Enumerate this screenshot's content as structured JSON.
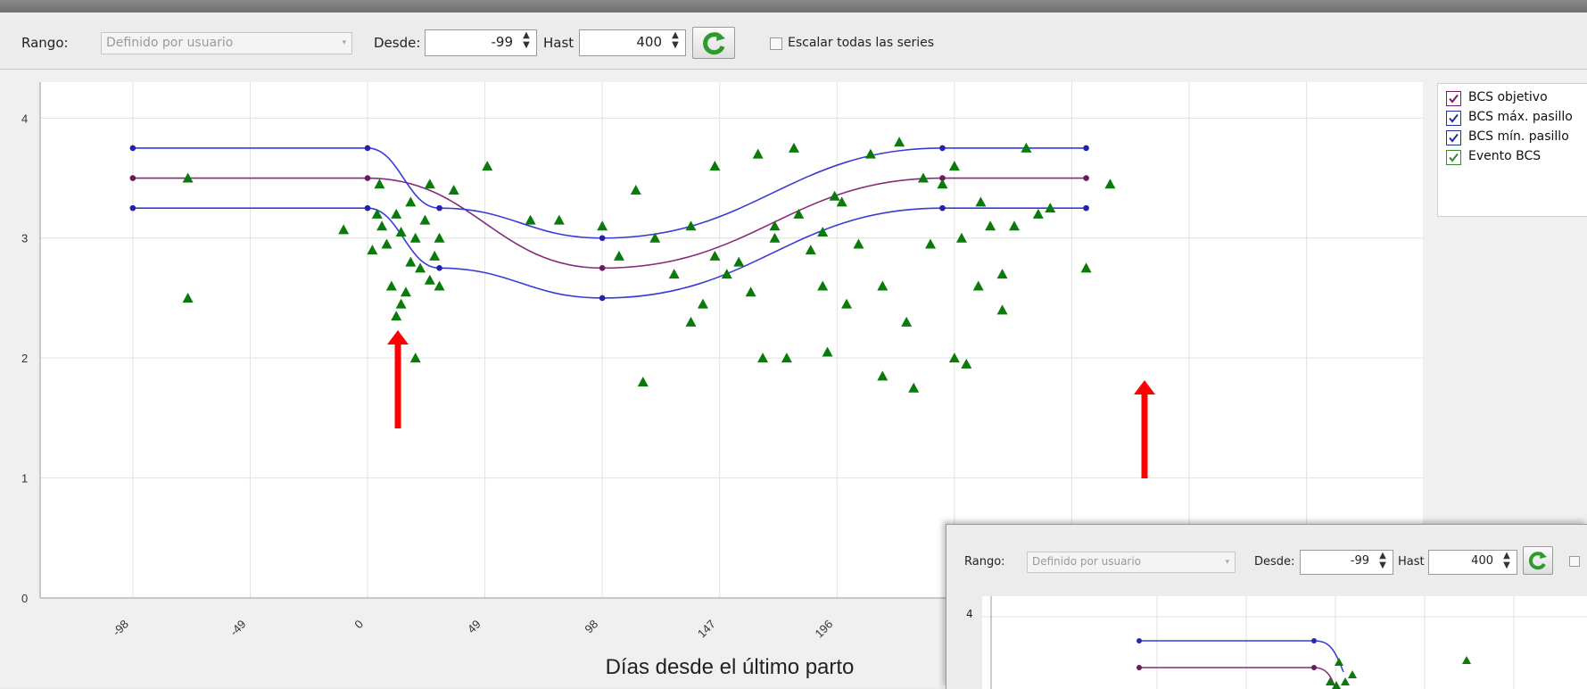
{
  "window": {
    "title": ""
  },
  "toolbar": {
    "rango_label": "Rango:",
    "rango_value": "Definido por usuario",
    "desde_label": "Desde:",
    "desde_value": "-99",
    "hasta_label": "Hast",
    "hasta_value": "400",
    "scale_label": "Escalar todas las series",
    "scale_checked": false
  },
  "legend": {
    "items": [
      {
        "label": "BCS objetivo",
        "color": "#7a1a6a",
        "checked": true
      },
      {
        "label": "BCS máx. pasillo",
        "color": "#1f2fa8",
        "checked": true
      },
      {
        "label": "BCS mín. pasillo",
        "color": "#1f2fa8",
        "checked": true
      },
      {
        "label": "Evento BCS",
        "color": "#2e8b2e",
        "checked": true
      }
    ]
  },
  "chart_data": {
    "type": "scatter",
    "xlabel": "Días desde el último parto",
    "ylabel": "",
    "x_ticks": [
      "-98",
      "-49",
      "0",
      "49",
      "98",
      "147",
      "196"
    ],
    "y_ticks": [
      "0",
      "1",
      "2",
      "3",
      "4"
    ],
    "xlim": [
      -99,
      400
    ],
    "ylim": [
      0,
      4.3
    ],
    "grid": true,
    "legend_position": "right",
    "series": [
      {
        "name": "BCS objetivo",
        "type": "line",
        "color": "#8a2a7a",
        "x": [
          -98,
          0,
          98,
          240,
          300
        ],
        "y": [
          3.5,
          3.5,
          2.75,
          3.5,
          3.5
        ]
      },
      {
        "name": "BCS máx. pasillo",
        "type": "line",
        "color": "#3a3ad8",
        "x": [
          -98,
          0,
          30,
          98,
          240,
          300
        ],
        "y": [
          3.75,
          3.75,
          3.25,
          3.0,
          3.75,
          3.75
        ]
      },
      {
        "name": "BCS mín. pasillo",
        "type": "line",
        "color": "#3a3ad8",
        "x": [
          -98,
          0,
          30,
          98,
          240,
          300
        ],
        "y": [
          3.25,
          3.25,
          2.75,
          2.5,
          3.25,
          3.25
        ]
      },
      {
        "name": "Evento BCS",
        "type": "scatter",
        "color": "#0a7a0a",
        "x": [
          -75,
          -75,
          -10,
          5,
          12,
          20,
          28,
          36,
          50,
          68,
          80,
          98,
          105,
          112,
          120,
          128,
          135,
          145,
          155,
          163,
          170,
          178,
          190,
          198,
          210,
          222,
          232,
          240,
          248,
          256,
          260,
          265,
          275,
          285,
          115,
          135,
          165,
          192,
          215,
          228,
          245,
          175,
          145,
          190,
          200,
          250,
          2,
          6,
          10,
          14,
          18,
          22,
          26,
          30,
          8,
          16,
          24,
          12,
          20,
          4,
          30,
          18,
          14,
          26,
          280,
          300,
          310,
          160,
          180,
          205,
          225,
          255,
          235,
          140,
          150,
          170,
          185,
          195,
          215,
          245,
          265,
          270
        ],
        "y": [
          3.5,
          2.5,
          3.07,
          3.45,
          3.2,
          3.0,
          2.85,
          3.4,
          3.6,
          3.15,
          3.15,
          3.1,
          2.85,
          3.4,
          3.0,
          2.7,
          3.1,
          3.6,
          2.8,
          3.7,
          3.0,
          3.75,
          3.05,
          3.3,
          3.7,
          3.8,
          3.5,
          3.45,
          3.0,
          3.3,
          3.1,
          2.7,
          3.75,
          3.25,
          1.8,
          2.3,
          2.0,
          2.05,
          1.85,
          1.75,
          2.0,
          2.0,
          2.85,
          2.6,
          2.45,
          1.95,
          2.9,
          3.1,
          2.6,
          2.45,
          3.3,
          2.75,
          3.45,
          2.6,
          2.95,
          2.55,
          3.15,
          2.35,
          2.0,
          3.2,
          3.0,
          2.8,
          3.05,
          2.65,
          3.2,
          2.75,
          3.45,
          2.55,
          3.2,
          2.95,
          2.3,
          2.6,
          2.95,
          2.45,
          2.7,
          3.1,
          2.9,
          3.35,
          2.6,
          3.6,
          2.4,
          3.1
        ]
      }
    ]
  },
  "annotations": {
    "arrow_color": "#ff0000",
    "arrow_count": 2
  },
  "inset": {
    "rango_label": "Rango:",
    "rango_value": "Definido por usuario",
    "desde_label": "Desde:",
    "desde_value": "-99",
    "hasta_label": "Hast",
    "hasta_value": "400",
    "y_tick": "4"
  }
}
